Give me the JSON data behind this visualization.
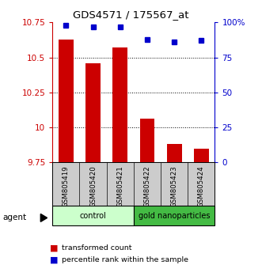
{
  "title": "GDS4571 / 175567_at",
  "samples": [
    "GSM805419",
    "GSM805420",
    "GSM805421",
    "GSM805422",
    "GSM805423",
    "GSM805424"
  ],
  "bar_values": [
    10.63,
    10.46,
    10.57,
    10.06,
    9.88,
    9.85
  ],
  "percentile_values": [
    98,
    97,
    97,
    88,
    86,
    87
  ],
  "ylim_left": [
    9.75,
    10.75
  ],
  "ylim_right": [
    0,
    100
  ],
  "yticks_left": [
    9.75,
    10.0,
    10.25,
    10.5,
    10.75
  ],
  "ytick_labels_left": [
    "9.75",
    "10",
    "10.25",
    "10.5",
    "10.75"
  ],
  "yticks_right": [
    0,
    25,
    50,
    75,
    100
  ],
  "ytick_labels_right": [
    "0",
    "25",
    "50",
    "75",
    "100%"
  ],
  "bar_color": "#cc0000",
  "marker_color": "#0000cc",
  "bar_width": 0.55,
  "groups": [
    {
      "label": "control",
      "indices": [
        0,
        1,
        2
      ],
      "color": "#ccffcc"
    },
    {
      "label": "gold nanoparticles",
      "indices": [
        3,
        4,
        5
      ],
      "color": "#44bb44"
    }
  ],
  "group_row_color": "#cccccc",
  "agent_label": "agent",
  "legend_items": [
    {
      "label": "transformed count",
      "color": "#cc0000"
    },
    {
      "label": "percentile rank within the sample",
      "color": "#0000cc"
    }
  ],
  "grid_ticks": [
    10.0,
    10.25,
    10.5
  ],
  "left_axis_color": "#cc0000",
  "right_axis_color": "#0000cc"
}
